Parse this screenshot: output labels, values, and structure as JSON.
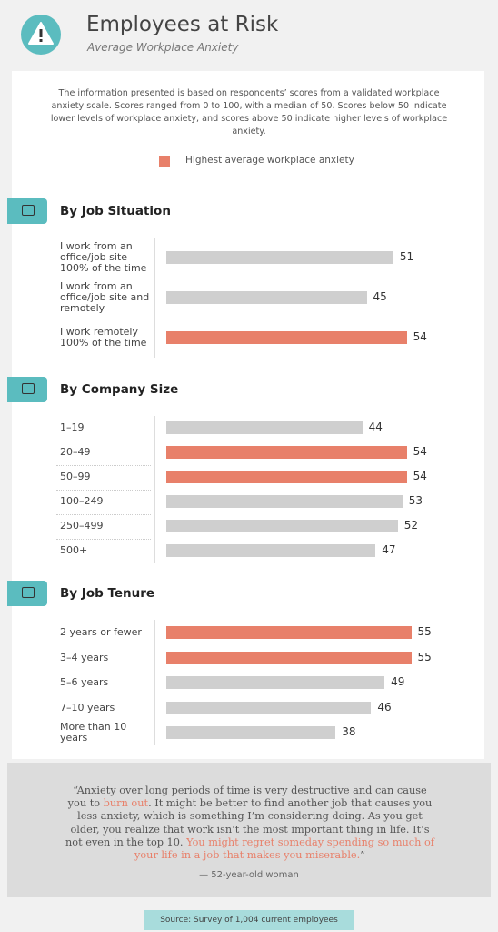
{
  "header": {
    "title": "Employees at Risk",
    "subtitle": "Average Workplace Anxiety"
  },
  "intro": "The information presented is based on respondents’ scores from a validated workplace anxiety scale. Scores ranged from 0 to 100, with a median of 50. Scores below 50 indicate lower levels of workplace anxiety, and scores above 50 indicate higher levels of workplace anxiety.",
  "legend": {
    "label": "Highest average workplace anxiety",
    "color": "#e8806a"
  },
  "chart_data": [
    {
      "type": "bar",
      "orientation": "horizontal",
      "title": "By Job Situation",
      "categories": [
        "I work from an office/job site 100% of the time",
        "I work from an office/job site and remotely",
        "I work remotely 100% of the time"
      ],
      "values": [
        51,
        45,
        54
      ],
      "colors": [
        "#cfcfcf",
        "#cfcfcf",
        "#e8806a"
      ]
    },
    {
      "type": "bar",
      "orientation": "horizontal",
      "title": "By Company Size",
      "categories": [
        "1–19",
        "20–49",
        "50–99",
        "100–249",
        "250–499",
        "500+"
      ],
      "values": [
        44,
        54,
        54,
        53,
        52,
        47
      ],
      "colors": [
        "#cfcfcf",
        "#e8806a",
        "#e8806a",
        "#cfcfcf",
        "#cfcfcf",
        "#cfcfcf"
      ]
    },
    {
      "type": "bar",
      "orientation": "horizontal",
      "title": "By Job Tenure",
      "categories": [
        "2 years or fewer",
        "3–4 years",
        "5–6 years",
        "7–10 years",
        "More than 10 years"
      ],
      "values": [
        55,
        55,
        49,
        46,
        38
      ],
      "colors": [
        "#e8806a",
        "#e8806a",
        "#cfcfcf",
        "#cfcfcf",
        "#cfcfcf"
      ]
    }
  ],
  "quote": {
    "parts": [
      {
        "text": "“Anxiety over long periods of time is very destructive and can cause you to ",
        "highlight": false
      },
      {
        "text": "burn out",
        "highlight": true
      },
      {
        "text": ". It might be better to find another job that causes you less anxiety, which is something I’m considering doing. As you get older, you realize that work isn’t the most important thing in life. It’s not even in the top 10. ",
        "highlight": false
      },
      {
        "text": "You might regret someday spending so much of your life in a job that makes you miserable.",
        "highlight": true
      },
      {
        "text": "”",
        "highlight": false
      }
    ],
    "attribution": "— 52-year-old woman"
  },
  "source": "Source: Survey of 1,004 current employees"
}
